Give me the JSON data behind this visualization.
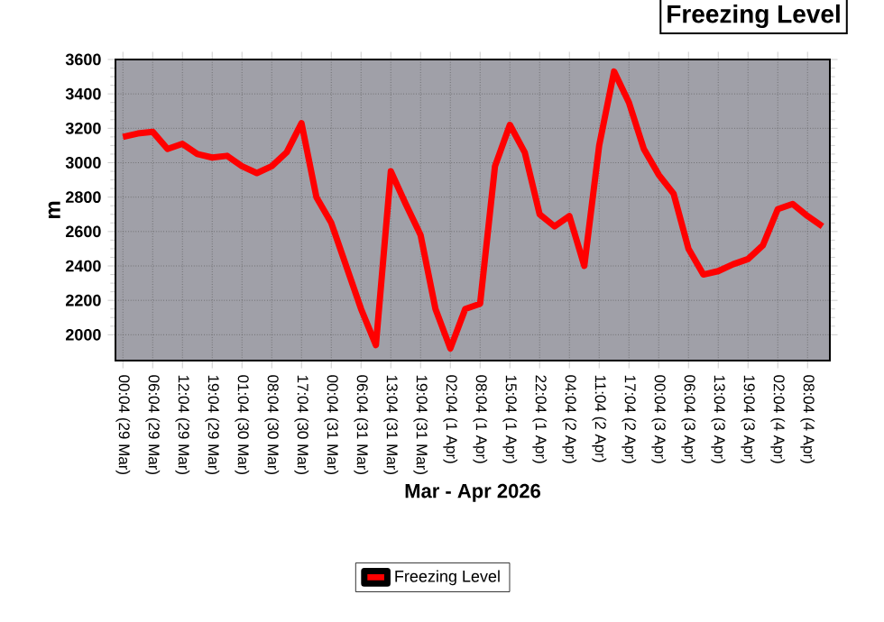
{
  "chart_data": {
    "type": "line",
    "title": "Freezing Level",
    "xlabel": "Mar - Apr 2026",
    "ylabel": "m",
    "categories": [
      "00:04 (29 Mar)",
      null,
      "06:04 (29 Mar)",
      null,
      "12:04 (29 Mar)",
      null,
      "19:04 (29 Mar)",
      null,
      "01:04 (30 Mar)",
      null,
      "08:04 (30 Mar)",
      null,
      "17:04 (30 Mar)",
      null,
      "00:04 (31 Mar)",
      null,
      "06:04 (31 Mar)",
      null,
      "13:04 (31 Mar)",
      null,
      "19:04 (31 Mar)",
      null,
      "02:04 (1 Apr)",
      null,
      "08:04 (1 Apr)",
      null,
      "15:04 (1 Apr)",
      null,
      "22:04 (1 Apr)",
      null,
      "04:04 (2 Apr)",
      null,
      "11:04 (2 Apr)",
      null,
      "17:04 (2 Apr)",
      null,
      "00:04 (3 Apr)",
      null,
      "06:04 (3 Apr)",
      null,
      "13:04 (3 Apr)",
      null,
      "19:04 (3 Apr)",
      null,
      "02:04 (4 Apr)",
      null,
      "08:04 (4 Apr)",
      null
    ],
    "series": [
      {
        "name": "Freezing Level",
        "color": "#ff0000",
        "values": [
          3150,
          3170,
          3180,
          3080,
          3110,
          3050,
          3030,
          3040,
          2980,
          2940,
          2980,
          3060,
          3230,
          2800,
          2650,
          2400,
          2150,
          1940,
          2950,
          2760,
          2580,
          2150,
          1920,
          2150,
          2180,
          2980,
          3220,
          3060,
          2700,
          2630,
          2690,
          2400,
          3100,
          3530,
          3350,
          3080,
          2930,
          2820,
          2500,
          2350,
          2370,
          2410,
          2440,
          2520,
          2730,
          2760,
          2690,
          2630
        ]
      }
    ],
    "ylim": [
      1850,
      3600
    ],
    "yticks": [
      2000,
      2200,
      2400,
      2600,
      2800,
      3000,
      3200,
      3400,
      3600
    ],
    "grid": true,
    "legend": "bottom",
    "marker": "none",
    "line_style": "solid"
  }
}
